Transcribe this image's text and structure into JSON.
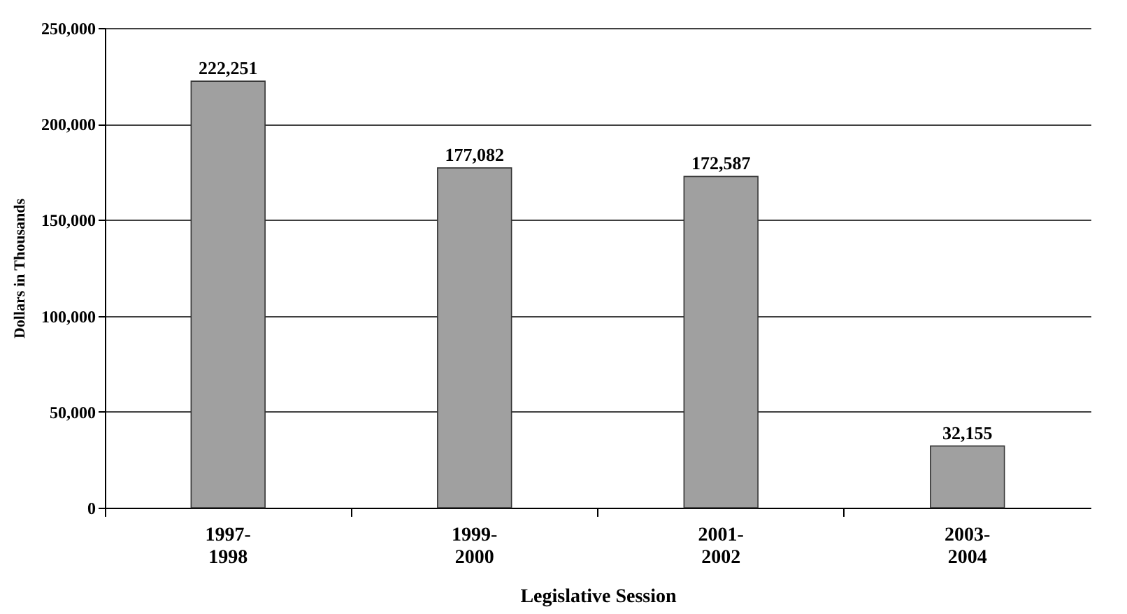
{
  "chart_data": {
    "type": "bar",
    "xlabel": "Legislative Session",
    "ylabel": "Dollars in Thousands",
    "categories": [
      "1997-\n1998",
      "1999-\n2000",
      "2001-\n2002",
      "2003-\n2004"
    ],
    "values": [
      222251,
      177082,
      172587,
      32155
    ],
    "color": "#a0a0a0",
    "value_labels": [
      "222,251",
      "177,082",
      "172,587",
      "32,155"
    ],
    "ylim": [
      0,
      250000
    ],
    "yticks": [
      0,
      {
        "value": 50000,
        "label": "50,000"
      },
      {
        "value": 100000,
        "label": "100,000"
      },
      {
        "value": 150000,
        "label": "150,000"
      },
      {
        "value": 200000,
        "label": "200,000"
      },
      {
        "value": 250000,
        "label": "250,000"
      }
    ],
    "grid": "y"
  }
}
